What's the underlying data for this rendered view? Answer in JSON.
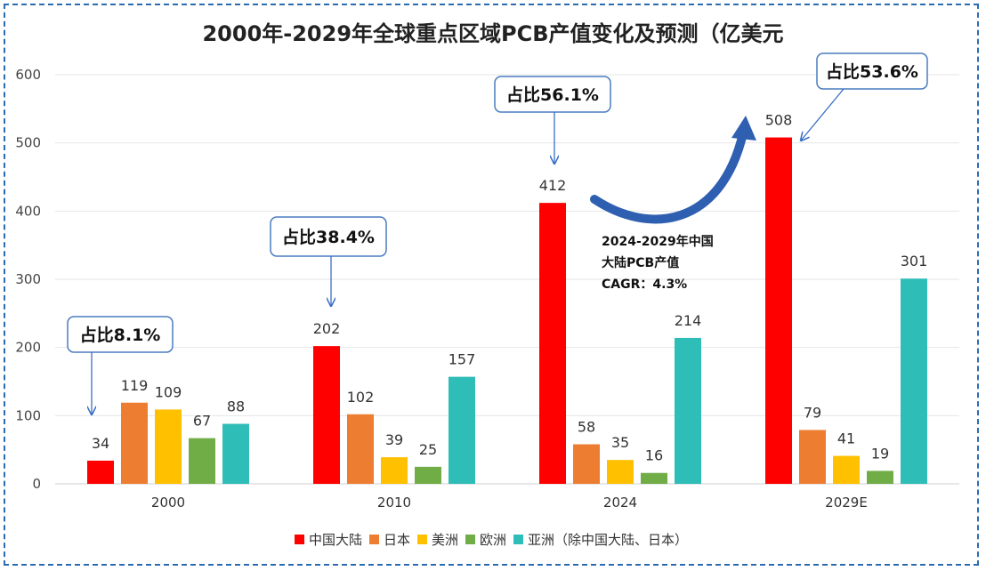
{
  "chart_data": {
    "type": "bar",
    "title": "2000年-2029年全球重点区域PCB产值变化及预测（亿美元",
    "categories": [
      "2000",
      "2010",
      "2024",
      "2029E"
    ],
    "series": [
      {
        "name": "中国大陆",
        "color": "#ff0000",
        "values": [
          34,
          202,
          412,
          508
        ]
      },
      {
        "name": "日本",
        "color": "#ed7d31",
        "values": [
          119,
          102,
          58,
          79
        ]
      },
      {
        "name": "美洲",
        "color": "#ffc000",
        "values": [
          109,
          39,
          35,
          41
        ]
      },
      {
        "name": "欧洲",
        "color": "#70ad47",
        "values": [
          67,
          25,
          16,
          19
        ]
      },
      {
        "name": "亚洲（除中国大陆、日本）",
        "color": "#2ebdb7",
        "values": [
          88,
          157,
          214,
          301
        ]
      }
    ],
    "ylim": [
      0,
      600
    ],
    "yticks": [
      0,
      100,
      200,
      300,
      400,
      500,
      600
    ],
    "grid": true,
    "legend_position": "bottom",
    "annotations": {
      "share_callouts": [
        "占比8.1%",
        "占比38.4%",
        "占比56.1%",
        "占比53.6%"
      ],
      "cagr_lines": [
        "2024-2029年中国",
        "大陆PCB产值",
        "CAGR：4.3%"
      ]
    }
  }
}
